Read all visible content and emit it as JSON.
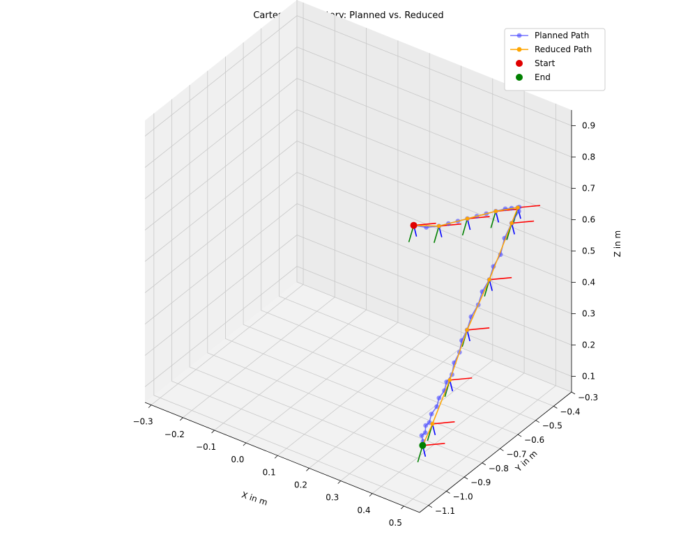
{
  "chart_data": {
    "type": "line",
    "projection": "3d",
    "title": "Cartesian Trajectory: Planned vs. Reduced",
    "xlabel": "X in m",
    "ylabel": "Y in m",
    "zlabel": "Z in m",
    "xlim": [
      -0.32,
      0.55
    ],
    "ylim": [
      -1.15,
      -0.3
    ],
    "zlim": [
      0.05,
      0.95
    ],
    "x_ticks": [
      "−0.3",
      "−0.2",
      "−0.1",
      "0.0",
      "0.1",
      "0.2",
      "0.3",
      "0.4",
      "0.5"
    ],
    "x_tick_values": [
      -0.3,
      -0.2,
      -0.1,
      0.0,
      0.1,
      0.2,
      0.3,
      0.4,
      0.5
    ],
    "y_ticks": [
      "−1.1",
      "−1.0",
      "−0.9",
      "−0.8",
      "−0.7",
      "−0.6",
      "−0.5",
      "−0.4",
      "−0.3"
    ],
    "y_tick_values": [
      -1.1,
      -1.0,
      -0.9,
      -0.8,
      -0.7,
      -0.6,
      -0.5,
      -0.4,
      -0.3
    ],
    "z_ticks": [
      "0.1",
      "0.2",
      "0.3",
      "0.4",
      "0.5",
      "0.6",
      "0.7",
      "0.8",
      "0.9"
    ],
    "z_tick_values": [
      0.1,
      0.2,
      0.3,
      0.4,
      0.5,
      0.6,
      0.7,
      0.8,
      0.9
    ],
    "grid": true,
    "legend_position": "top-right",
    "series": [
      {
        "name": "Planned Path",
        "color": "#4a4aff",
        "marker": "circle",
        "x": [
          0.05,
          0.09,
          0.13,
          0.16,
          0.19,
          0.22,
          0.25,
          0.28,
          0.31,
          0.34,
          0.36,
          0.38,
          0.39,
          0.4,
          0.4,
          0.4,
          0.41,
          0.41,
          0.42,
          0.42,
          0.43,
          0.43,
          0.44,
          0.44,
          0.45,
          0.45,
          0.46,
          0.46,
          0.47,
          0.47,
          0.48,
          0.48,
          0.49,
          0.49,
          0.5,
          0.5,
          0.51,
          0.52
        ],
        "y": [
          -0.3,
          -0.3,
          -0.3,
          -0.3,
          -0.3,
          -0.3,
          -0.3,
          -0.3,
          -0.3,
          -0.3,
          -0.3,
          -0.3,
          -0.31,
          -0.33,
          -0.37,
          -0.41,
          -0.45,
          -0.49,
          -0.53,
          -0.57,
          -0.61,
          -0.65,
          -0.69,
          -0.72,
          -0.75,
          -0.78,
          -0.81,
          -0.84,
          -0.87,
          -0.9,
          -0.93,
          -0.96,
          -0.99,
          -1.01,
          -1.03,
          -1.05,
          -1.06,
          -1.08
        ],
        "z": [
          0.38,
          0.39,
          0.41,
          0.43,
          0.45,
          0.47,
          0.49,
          0.51,
          0.53,
          0.55,
          0.56,
          0.57,
          0.58,
          0.58,
          0.56,
          0.53,
          0.5,
          0.48,
          0.46,
          0.44,
          0.42,
          0.4,
          0.38,
          0.36,
          0.34,
          0.32,
          0.3,
          0.29,
          0.28,
          0.27,
          0.26,
          0.25,
          0.24,
          0.24,
          0.23,
          0.23,
          0.22,
          0.22
        ]
      },
      {
        "name": "Reduced Path",
        "color": "#ffa500",
        "marker": "circle",
        "x": [
          0.05,
          0.13,
          0.22,
          0.31,
          0.38,
          0.4,
          0.42,
          0.44,
          0.47,
          0.5,
          0.52
        ],
        "y": [
          -0.3,
          -0.3,
          -0.3,
          -0.3,
          -0.3,
          -0.37,
          -0.53,
          -0.69,
          -0.84,
          -0.99,
          -1.08
        ],
        "z": [
          0.38,
          0.41,
          0.47,
          0.53,
          0.57,
          0.56,
          0.46,
          0.38,
          0.3,
          0.24,
          0.22
        ]
      },
      {
        "name": "Start",
        "color": "#e00000",
        "marker": "dot",
        "x": [
          0.05
        ],
        "y": [
          -0.3
        ],
        "z": [
          0.38
        ]
      },
      {
        "name": "End",
        "color": "#008000",
        "marker": "dot",
        "x": [
          0.52
        ],
        "y": [
          -1.08
        ],
        "z": [
          0.22
        ]
      }
    ],
    "frame_axes_colors": [
      "#ff0000",
      "#008000",
      "#0000ff"
    ]
  }
}
